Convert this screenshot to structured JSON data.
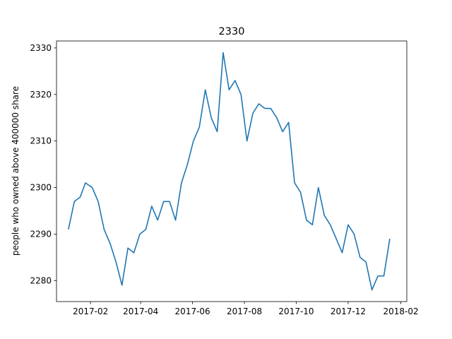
{
  "chart_data": {
    "type": "line",
    "title": "2330",
    "xlabel": "",
    "ylabel": "people who owned above 400000 share",
    "x_ticks": [
      "2017-02",
      "2017-04",
      "2017-06",
      "2017-08",
      "2017-10",
      "2017-12",
      "2018-02"
    ],
    "y_ticks": [
      "2280",
      "2290",
      "2300",
      "2310",
      "2320",
      "2330"
    ],
    "xlim": [
      "2016-12-23",
      "2018-02-08"
    ],
    "ylim": [
      2275.5,
      2331.5
    ],
    "grid": false,
    "color": "#1f77b4",
    "series": [
      {
        "name": "",
        "points": [
          [
            "2017-01-06",
            2291
          ],
          [
            "2017-01-13",
            2297
          ],
          [
            "2017-01-20",
            2298
          ],
          [
            "2017-01-26",
            2301
          ],
          [
            "2017-02-03",
            2300
          ],
          [
            "2017-02-10",
            2297
          ],
          [
            "2017-02-17",
            2291
          ],
          [
            "2017-02-24",
            2288
          ],
          [
            "2017-03-03",
            2284
          ],
          [
            "2017-03-10",
            2279
          ],
          [
            "2017-03-17",
            2287
          ],
          [
            "2017-03-24",
            2286
          ],
          [
            "2017-03-31",
            2290
          ],
          [
            "2017-04-07",
            2291
          ],
          [
            "2017-04-14",
            2296
          ],
          [
            "2017-04-21",
            2293
          ],
          [
            "2017-04-28",
            2297
          ],
          [
            "2017-05-05",
            2297
          ],
          [
            "2017-05-12",
            2293
          ],
          [
            "2017-05-19",
            2301
          ],
          [
            "2017-05-26",
            2305
          ],
          [
            "2017-06-02",
            2310
          ],
          [
            "2017-06-09",
            2313
          ],
          [
            "2017-06-16",
            2321
          ],
          [
            "2017-06-23",
            2315
          ],
          [
            "2017-06-30",
            2312
          ],
          [
            "2017-07-07",
            2329
          ],
          [
            "2017-07-14",
            2321
          ],
          [
            "2017-07-21",
            2323
          ],
          [
            "2017-07-28",
            2320
          ],
          [
            "2017-08-04",
            2310
          ],
          [
            "2017-08-11",
            2316
          ],
          [
            "2017-08-18",
            2318
          ],
          [
            "2017-08-25",
            2317
          ],
          [
            "2017-09-01",
            2317
          ],
          [
            "2017-09-08",
            2315
          ],
          [
            "2017-09-15",
            2312
          ],
          [
            "2017-09-22",
            2314
          ],
          [
            "2017-09-29",
            2301
          ],
          [
            "2017-10-06",
            2299
          ],
          [
            "2017-10-13",
            2293
          ],
          [
            "2017-10-20",
            2292
          ],
          [
            "2017-10-27",
            2300
          ],
          [
            "2017-11-03",
            2294
          ],
          [
            "2017-11-10",
            2292
          ],
          [
            "2017-11-17",
            2289
          ],
          [
            "2017-11-24",
            2286
          ],
          [
            "2017-12-01",
            2292
          ],
          [
            "2017-12-08",
            2290
          ],
          [
            "2017-12-15",
            2285
          ],
          [
            "2017-12-22",
            2284
          ],
          [
            "2017-12-29",
            2278
          ],
          [
            "2018-01-05",
            2281
          ],
          [
            "2018-01-12",
            2281
          ],
          [
            "2018-01-19",
            2289
          ]
        ]
      }
    ]
  }
}
